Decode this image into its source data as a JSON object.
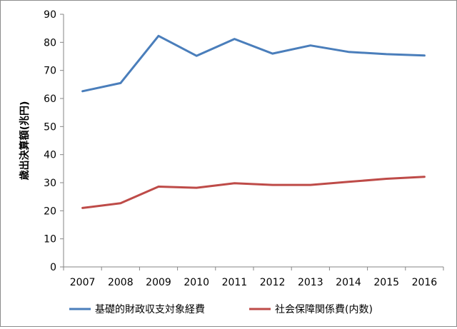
{
  "chart_data": {
    "type": "line",
    "title": "",
    "xlabel": "",
    "ylabel": "歳出決算額(兆円)",
    "ylim": [
      0,
      90
    ],
    "yticks": [
      0,
      10,
      20,
      30,
      40,
      50,
      60,
      70,
      80,
      90
    ],
    "grid": false,
    "legend_position": "bottom",
    "categories": [
      "2007",
      "2008",
      "2009",
      "2010",
      "2011",
      "2012",
      "2013",
      "2014",
      "2015",
      "2016"
    ],
    "series": [
      {
        "name": "基礎的財政収支対象経費",
        "color": "#4a7ebb",
        "values": [
          62.6,
          65.5,
          82.3,
          75.2,
          81.2,
          76.0,
          78.9,
          76.6,
          75.8,
          75.3
        ]
      },
      {
        "name": "社会保障関係費(内数)",
        "color": "#be4b48",
        "values": [
          21.0,
          22.7,
          28.6,
          28.2,
          29.8,
          29.2,
          29.2,
          30.3,
          31.4,
          32.1
        ]
      }
    ]
  }
}
